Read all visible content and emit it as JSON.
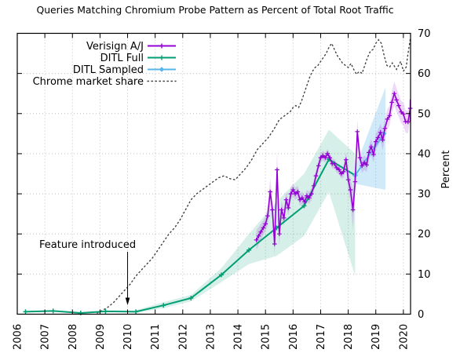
{
  "title": "Queries Matching Chromium Probe Pattern as Percent of Total Root Traffic",
  "annotation": {
    "text": "Feature introduced",
    "arrow_points_to_year": 2010
  },
  "x_axis": {
    "tick_labels": [
      "2006",
      "2007",
      "2008",
      "2009",
      "2010",
      "2011",
      "2012",
      "2013",
      "2014",
      "2015",
      "2016",
      "2017",
      "2018",
      "2019",
      "2020"
    ]
  },
  "y_axis": {
    "label": "Percent",
    "tick_labels": [
      "0",
      "10",
      "20",
      "30",
      "40",
      "50",
      "60",
      "70"
    ]
  },
  "chart_data": {
    "type": "line",
    "title": "Queries Matching Chromium Probe Pattern as Percent of Total Root Traffic",
    "xlabel": "",
    "ylabel": "Percent",
    "xlim": [
      2006,
      2020.26
    ],
    "ylim": [
      0,
      70
    ],
    "x_ticks": [
      2006,
      2007,
      2008,
      2009,
      2010,
      2011,
      2012,
      2013,
      2014,
      2015,
      2016,
      2017,
      2018,
      2019,
      2020
    ],
    "y_ticks": [
      0,
      10,
      20,
      30,
      40,
      50,
      60,
      70
    ],
    "grid": true,
    "legend_position": "top-left-inside",
    "grid_color": "#c0c0c0",
    "series": [
      {
        "name": "Verisign A/J",
        "color": "#9400d3",
        "band_color": "rgba(148,0,211,0.15)",
        "marker": "plus",
        "style": "solid",
        "x": [
          2014.67,
          2014.75,
          2014.83,
          2014.92,
          2015,
          2015.08,
          2015.17,
          2015.25,
          2015.33,
          2015.42,
          2015.5,
          2015.58,
          2015.67,
          2015.75,
          2015.83,
          2015.92,
          2016,
          2016.08,
          2016.17,
          2016.25,
          2016.33,
          2016.42,
          2016.5,
          2016.58,
          2016.67,
          2016.75,
          2016.83,
          2016.92,
          2017,
          2017.08,
          2017.17,
          2017.25,
          2017.33,
          2017.42,
          2017.5,
          2017.58,
          2017.67,
          2017.75,
          2017.83,
          2017.92,
          2018,
          2018.08,
          2018.17,
          2018.25,
          2018.33,
          2018.42,
          2018.5,
          2018.58,
          2018.67,
          2018.75,
          2018.83,
          2018.92,
          2019,
          2019.08,
          2019.17,
          2019.25,
          2019.33,
          2019.42,
          2019.5,
          2019.58,
          2019.67,
          2019.75,
          2019.83,
          2019.92,
          2020,
          2020.08,
          2020.17,
          2020.25
        ],
        "y": [
          18.5,
          19.5,
          20.5,
          21.5,
          22.5,
          24.5,
          30.5,
          26,
          17.5,
          36,
          20,
          26,
          24,
          28.5,
          26.5,
          30,
          31,
          30,
          30.5,
          28.5,
          29,
          28,
          29.5,
          29,
          30,
          32,
          34.5,
          37,
          39,
          39.5,
          39,
          40,
          39,
          37.5,
          37.5,
          36.5,
          36,
          35,
          35.5,
          38.5,
          33.5,
          31,
          26,
          33,
          45.5,
          39,
          37,
          37.8,
          37.2,
          40.3,
          41.7,
          39.8,
          43,
          44,
          45.3,
          43.4,
          46.3,
          48.6,
          49.5,
          52.8,
          55,
          53.4,
          52,
          50.4,
          49.9,
          48,
          47.9,
          51.3
        ],
        "band_halfwidth": [
          2.5,
          2.2,
          2,
          1.8,
          1.8,
          2.5,
          3.5,
          2.5,
          3,
          5,
          3,
          2.2,
          2,
          2,
          1.8,
          1.8,
          1.5,
          1.5,
          1.5,
          1.5,
          1.5,
          1.5,
          1.5,
          1.5,
          1.5,
          1.5,
          1.5,
          1.5,
          1.2,
          1.2,
          1.2,
          1.2,
          1.2,
          1.2,
          1.2,
          1.2,
          1.2,
          1.2,
          1.5,
          2,
          2.5,
          3,
          5,
          3.5,
          3,
          2,
          1.8,
          1.8,
          1.8,
          1.8,
          2,
          2,
          2,
          2,
          2.2,
          2.5,
          2.5,
          2.5,
          2.5,
          2.8,
          3,
          3,
          2.8,
          2.8,
          2.8,
          2.8,
          2.8,
          2.8
        ],
        "final_errorbar": [
          48,
          53.5
        ]
      },
      {
        "name": "DITL Full",
        "color": "#009e73",
        "band_color": "rgba(0,158,115,0.16)",
        "marker": "plus",
        "style": "solid",
        "x": [
          2006.3,
          2007.3,
          2008.3,
          2009.2,
          2010.3,
          2011.3,
          2012.3,
          2013.4,
          2014.4,
          2015.4,
          2016.4,
          2017.3,
          2018.25
        ],
        "y": [
          0.6,
          0.8,
          0.3,
          0.7,
          0.6,
          2.2,
          4,
          9.8,
          16,
          21.5,
          27,
          38.6,
          34.6
        ],
        "band": {
          "x": [
            2010.3,
            2011.3,
            2012.3,
            2013.4,
            2014.4,
            2015.4,
            2016.4,
            2017.3,
            2018.25
          ],
          "top": [
            1,
            3,
            4.8,
            11.5,
            20,
            28,
            35,
            46,
            40
          ],
          "bottom": [
            0.3,
            1.5,
            3.2,
            8,
            12.5,
            14.5,
            19.5,
            30.5,
            9.5
          ]
        }
      },
      {
        "name": "DITL Sampled",
        "color": "#56b4e9",
        "band_color": "rgba(86,180,233,0.28)",
        "marker": "diamond",
        "style": "solid",
        "x": [
          2018.25,
          2019.3
        ],
        "y": [
          34.6,
          45
        ],
        "band": {
          "x": [
            2018.25,
            2019.35
          ],
          "top": [
            36.5,
            56.5
          ],
          "bottom": [
            32.5,
            31
          ]
        }
      },
      {
        "name": "Chrome market share",
        "color": "#404040",
        "marker": "none",
        "style": "dotted",
        "x": [
          2008.9,
          2009.1,
          2009.3,
          2009.5,
          2009.7,
          2009.9,
          2010.1,
          2010.3,
          2010.5,
          2010.7,
          2010.9,
          2011.1,
          2011.3,
          2011.5,
          2011.7,
          2011.9,
          2012.1,
          2012.3,
          2012.5,
          2012.7,
          2012.9,
          2013.1,
          2013.3,
          2013.5,
          2013.7,
          2013.9,
          2014.1,
          2014.3,
          2014.5,
          2014.7,
          2014.9,
          2015.1,
          2015.3,
          2015.5,
          2015.7,
          2015.9,
          2016,
          2016.1,
          2016.2,
          2016.3,
          2016.4,
          2016.5,
          2016.6,
          2016.7,
          2016.8,
          2016.9,
          2017,
          2017.1,
          2017.2,
          2017.3,
          2017.4,
          2017.5,
          2017.6,
          2017.7,
          2017.8,
          2017.9,
          2018,
          2018.1,
          2018.2,
          2018.3,
          2018.4,
          2018.5,
          2018.6,
          2018.7,
          2018.8,
          2018.9,
          2019,
          2019.1,
          2019.2,
          2019.3,
          2019.4,
          2019.5,
          2019.6,
          2019.75,
          2019.9,
          2020,
          2020.1,
          2020.17,
          2020.25
        ],
        "y": [
          0.3,
          1,
          1.8,
          3,
          4.5,
          6,
          7.5,
          9.5,
          11,
          12.5,
          14,
          16,
          18,
          20,
          21.5,
          23.5,
          26,
          28.5,
          30,
          31,
          32,
          33,
          34,
          34.5,
          33.8,
          33.5,
          35,
          36.5,
          38.5,
          41,
          42.5,
          44,
          46,
          48.5,
          49.5,
          50.5,
          51.5,
          52,
          51.5,
          53,
          55,
          57,
          59,
          60.5,
          61.5,
          62,
          63,
          64,
          65,
          66.5,
          67.5,
          66,
          64.5,
          63.5,
          62.5,
          62,
          61.5,
          62.5,
          61,
          59.8,
          60.5,
          60,
          62,
          64,
          65.5,
          66,
          67.5,
          68.4,
          67.5,
          64.5,
          62,
          61.6,
          62.6,
          61,
          63,
          60.6,
          61.6,
          65,
          68.5
        ]
      }
    ]
  }
}
